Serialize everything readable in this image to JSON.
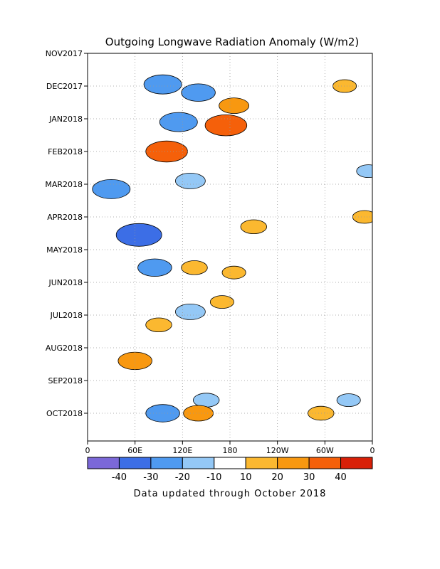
{
  "chart_data": {
    "type": "heatmap",
    "title": "Outgoing Longwave Radiation Anomaly (W/m2)",
    "xlabel": "",
    "ylabel": "",
    "x_tick_labels": [
      "0",
      "60E",
      "120E",
      "180",
      "120W",
      "60W",
      "0"
    ],
    "x_ticks_deg": [
      0,
      60,
      120,
      180,
      240,
      300,
      360
    ],
    "x_range_deg": [
      0,
      360
    ],
    "y_tick_labels": [
      "NOV2017",
      "DEC2017",
      "JAN2018",
      "FEB2018",
      "MAR2018",
      "APR2018",
      "MAY2018",
      "JUN2018",
      "JUL2018",
      "AUG2018",
      "SEP2018",
      "OCT2018"
    ],
    "grid": "dotted",
    "colorbar": {
      "labels": [
        "-40",
        "-30",
        "-20",
        "-10",
        "10",
        "20",
        "30",
        "40"
      ],
      "colors": [
        "#7b68d8",
        "#3c6ee6",
        "#4f9af0",
        "#94c8f6",
        "#ffffff",
        "#fbb830",
        "#f89810",
        "#f5600a",
        "#d82008"
      ]
    },
    "note": "Data updated through October 2018",
    "field_features": [
      {
        "lon": 115,
        "month": 2.1,
        "value": -30
      },
      {
        "lon": 140,
        "month": 1.2,
        "value": -25
      },
      {
        "lon": 95,
        "month": 0.95,
        "value": -30
      },
      {
        "lon": 175,
        "month": 2.2,
        "value": 35
      },
      {
        "lon": 185,
        "month": 1.6,
        "value": 20
      },
      {
        "lon": 100,
        "month": 3.0,
        "value": 35
      },
      {
        "lon": 130,
        "month": 3.9,
        "value": -20
      },
      {
        "lon": 30,
        "month": 4.15,
        "value": -30
      },
      {
        "lon": 65,
        "month": 5.55,
        "value": -40
      },
      {
        "lon": 210,
        "month": 5.3,
        "value": 15
      },
      {
        "lon": 85,
        "month": 6.55,
        "value": -25
      },
      {
        "lon": 135,
        "month": 6.55,
        "value": 15
      },
      {
        "lon": 185,
        "month": 6.7,
        "value": 12
      },
      {
        "lon": 130,
        "month": 7.9,
        "value": -20
      },
      {
        "lon": 90,
        "month": 8.3,
        "value": 15
      },
      {
        "lon": 170,
        "month": 7.6,
        "value": 12
      },
      {
        "lon": 60,
        "month": 9.4,
        "value": 25
      },
      {
        "lon": 150,
        "month": 10.6,
        "value": -15
      },
      {
        "lon": 95,
        "month": 11.0,
        "value": -25
      },
      {
        "lon": 140,
        "month": 11.0,
        "value": 20
      },
      {
        "lon": 350,
        "month": 5.0,
        "value": 12
      },
      {
        "lon": 325,
        "month": 1.0,
        "value": 12
      },
      {
        "lon": 355,
        "month": 3.6,
        "value": -12
      },
      {
        "lon": 295,
        "month": 11.0,
        "value": 15
      },
      {
        "lon": 330,
        "month": 10.6,
        "value": -12
      }
    ]
  }
}
